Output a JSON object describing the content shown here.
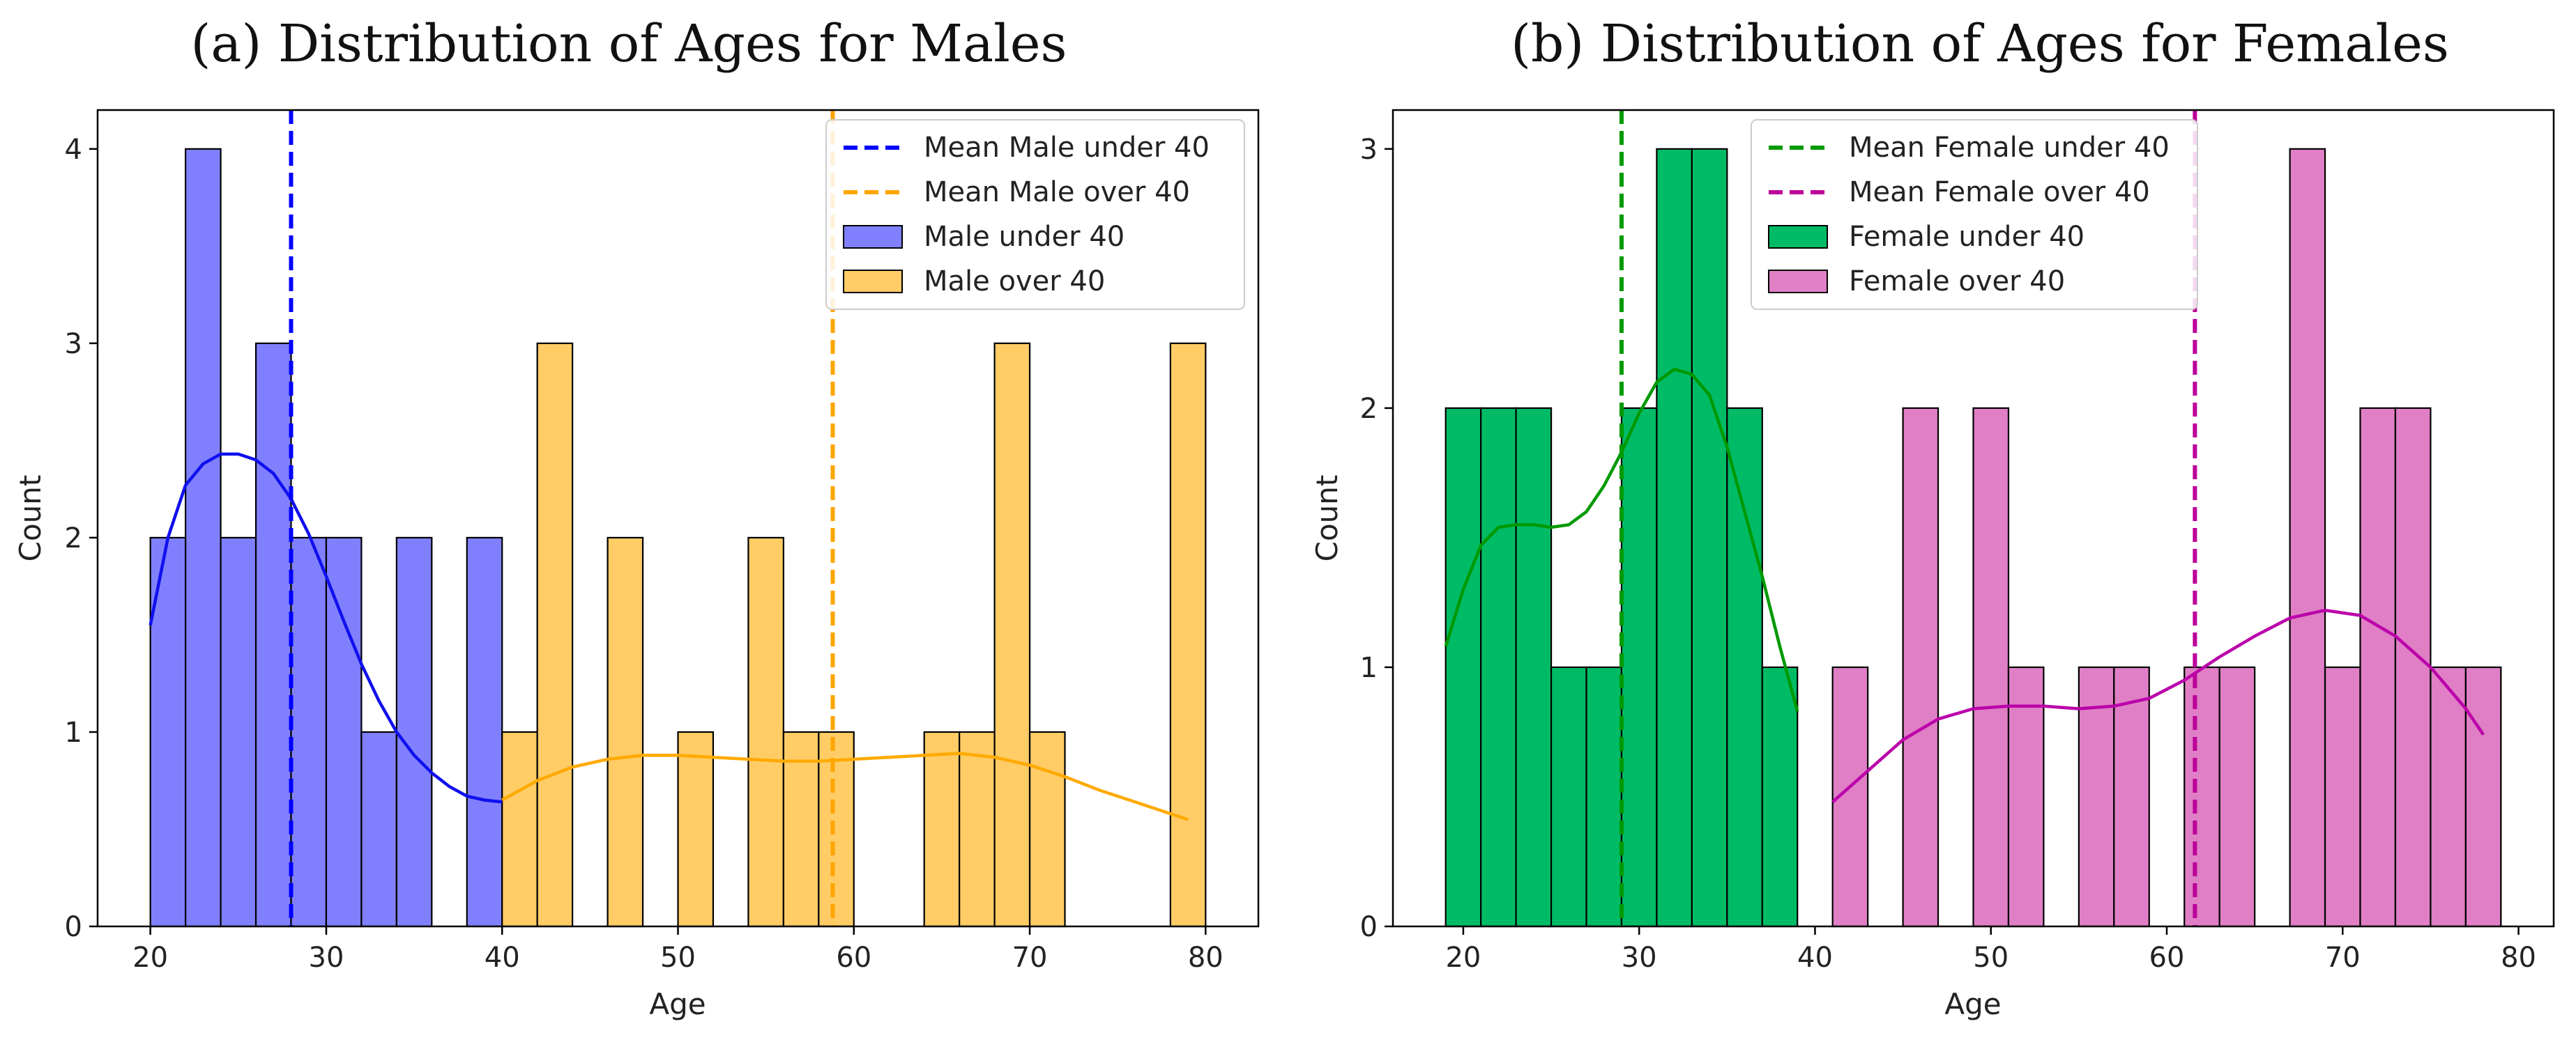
{
  "chart_data": [
    {
      "type": "histogram",
      "title": "(a) Distribution of Ages for Males",
      "xlabel": "Age",
      "ylabel": "Count",
      "xlim": [
        17,
        83
      ],
      "ylim": [
        0,
        4.2
      ],
      "xticks": [
        20,
        30,
        40,
        50,
        60,
        70,
        80
      ],
      "yticks": [
        0,
        1,
        2,
        3,
        4
      ],
      "legend_position": "top-right",
      "series": [
        {
          "name": "Male under 40",
          "color": "#8080ff",
          "bin_start": 20,
          "bin_width": 2,
          "counts": [
            2,
            4,
            2,
            3,
            2,
            2,
            1,
            2,
            0,
            2
          ],
          "kde": [
            [
              20,
              1.55
            ],
            [
              21,
              2.0
            ],
            [
              22,
              2.27
            ],
            [
              23,
              2.38
            ],
            [
              24,
              2.43
            ],
            [
              25,
              2.43
            ],
            [
              26,
              2.4
            ],
            [
              27,
              2.33
            ],
            [
              28,
              2.2
            ],
            [
              29,
              2.02
            ],
            [
              30,
              1.8
            ],
            [
              31,
              1.57
            ],
            [
              32,
              1.35
            ],
            [
              33,
              1.16
            ],
            [
              34,
              1.0
            ],
            [
              35,
              0.88
            ],
            [
              36,
              0.79
            ],
            [
              37,
              0.72
            ],
            [
              38,
              0.67
            ],
            [
              39,
              0.65
            ],
            [
              40,
              0.64
            ]
          ],
          "kde_color": "#1010ee"
        },
        {
          "name": "Male over 40",
          "color": "#ffcc66",
          "bin_start": 40,
          "bin_width": 2,
          "counts": [
            1,
            3,
            0,
            2,
            0,
            1,
            0,
            2,
            1,
            1,
            0,
            0,
            1,
            1,
            3,
            1,
            0,
            0,
            0,
            3
          ],
          "kde": [
            [
              40,
              0.65
            ],
            [
              42,
              0.75
            ],
            [
              44,
              0.82
            ],
            [
              46,
              0.86
            ],
            [
              48,
              0.88
            ],
            [
              50,
              0.88
            ],
            [
              52,
              0.87
            ],
            [
              54,
              0.86
            ],
            [
              56,
              0.85
            ],
            [
              58,
              0.85
            ],
            [
              60,
              0.86
            ],
            [
              62,
              0.87
            ],
            [
              64,
              0.88
            ],
            [
              66,
              0.89
            ],
            [
              68,
              0.87
            ],
            [
              70,
              0.83
            ],
            [
              72,
              0.77
            ],
            [
              74,
              0.7
            ],
            [
              76,
              0.64
            ],
            [
              78,
              0.58
            ],
            [
              79,
              0.55
            ]
          ],
          "kde_color": "#ffaa00"
        }
      ],
      "mean_lines": [
        {
          "name": "Mean Male under 40",
          "x": 28,
          "color": "#0000ff"
        },
        {
          "name": "Mean Male over 40",
          "x": 58.8,
          "color": "#ffa500"
        }
      ]
    },
    {
      "type": "histogram",
      "title": "(b) Distribution of Ages for Females",
      "xlabel": "Age",
      "ylabel": "Count",
      "xlim": [
        16,
        82
      ],
      "ylim": [
        0,
        3.15
      ],
      "xticks": [
        20,
        30,
        40,
        50,
        60,
        70,
        80
      ],
      "yticks": [
        0,
        1,
        2,
        3
      ],
      "legend_position": "top-center",
      "series": [
        {
          "name": "Female under 40",
          "color": "#00bb66",
          "bin_start": 19,
          "bin_width": 2,
          "counts": [
            2,
            2,
            2,
            1,
            1,
            2,
            3,
            3,
            2,
            1
          ],
          "kde": [
            [
              19,
              1.08
            ],
            [
              20,
              1.3
            ],
            [
              21,
              1.47
            ],
            [
              22,
              1.54
            ],
            [
              23,
              1.55
            ],
            [
              24,
              1.55
            ],
            [
              25,
              1.54
            ],
            [
              26,
              1.55
            ],
            [
              27,
              1.6
            ],
            [
              28,
              1.7
            ],
            [
              29,
              1.83
            ],
            [
              30,
              1.98
            ],
            [
              31,
              2.1
            ],
            [
              32,
              2.15
            ],
            [
              33,
              2.13
            ],
            [
              34,
              2.05
            ],
            [
              35,
              1.85
            ],
            [
              36,
              1.6
            ],
            [
              37,
              1.35
            ],
            [
              38,
              1.08
            ],
            [
              39,
              0.83
            ]
          ],
          "kde_color": "#009900"
        },
        {
          "name": "Female over 40",
          "color": "#e07fc6",
          "bin_start": 41,
          "bin_width": 2,
          "counts": [
            1,
            0,
            2,
            0,
            2,
            1,
            0,
            1,
            1,
            0,
            1,
            1,
            0,
            3,
            1,
            2,
            2,
            1,
            1
          ],
          "kde": [
            [
              41,
              0.48
            ],
            [
              43,
              0.6
            ],
            [
              45,
              0.72
            ],
            [
              47,
              0.8
            ],
            [
              49,
              0.84
            ],
            [
              51,
              0.85
            ],
            [
              53,
              0.85
            ],
            [
              55,
              0.84
            ],
            [
              57,
              0.85
            ],
            [
              59,
              0.88
            ],
            [
              61,
              0.95
            ],
            [
              63,
              1.04
            ],
            [
              65,
              1.12
            ],
            [
              67,
              1.19
            ],
            [
              69,
              1.22
            ],
            [
              71,
              1.2
            ],
            [
              73,
              1.12
            ],
            [
              75,
              1.0
            ],
            [
              77,
              0.84
            ],
            [
              78,
              0.74
            ]
          ],
          "kde_color": "#bb00aa"
        }
      ],
      "mean_lines": [
        {
          "name": "Mean Female under 40",
          "x": 29,
          "color": "#009900"
        },
        {
          "name": "Mean Female over 40",
          "x": 61.6,
          "color": "#bb0099"
        }
      ]
    }
  ]
}
